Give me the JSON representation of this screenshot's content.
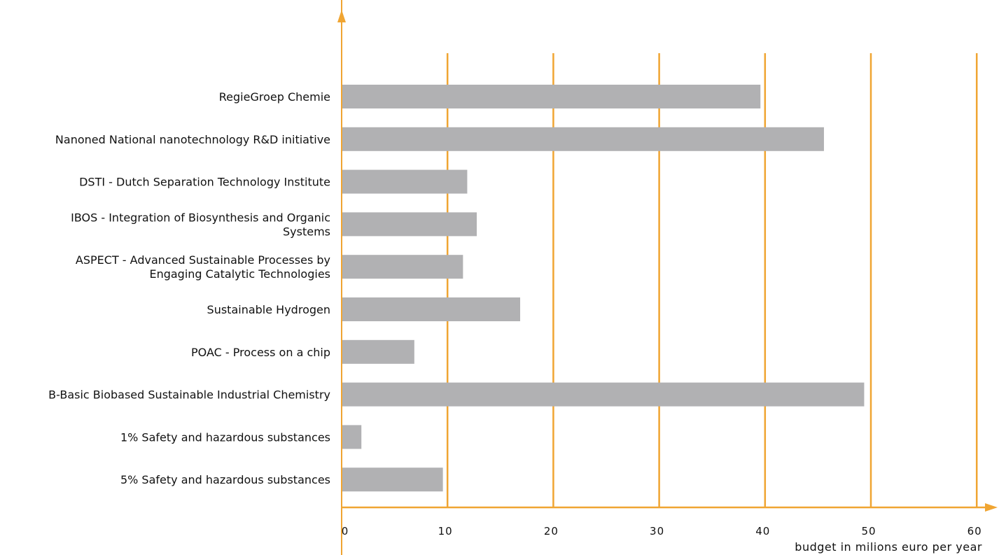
{
  "chart_data": {
    "type": "bar",
    "orientation": "horizontal",
    "title": "",
    "xlabel": "budget in milions euro per year",
    "ylabel": "",
    "xlim": [
      0,
      60
    ],
    "x_ticks": [
      0,
      10,
      20,
      30,
      40,
      50,
      60
    ],
    "x_tick_labels": [
      "0",
      "10",
      "20",
      "30",
      "40",
      "50",
      "60"
    ],
    "grid": "vertical",
    "categories": [
      [
        "RegieGroep Chemie"
      ],
      [
        "Nanoned National nanotechnology R&D initiative"
      ],
      [
        "DSTI - Dutch Separation Technology Institute"
      ],
      [
        "IBOS - Integration of Biosynthesis and Organic",
        "Systems"
      ],
      [
        "ASPECT - Advanced Sustainable Processes by",
        "Engaging Catalytic Technologies"
      ],
      [
        "Sustainable Hydrogen"
      ],
      [
        "POAC - Process on a chip"
      ],
      [
        "B-Basic Biobased Sustainable Industrial Chemistry"
      ],
      [
        "1% Safety and hazardous substances"
      ],
      [
        "5% Safety and hazardous substances"
      ]
    ],
    "values": [
      39.5,
      45.5,
      11.8,
      12.7,
      11.4,
      16.8,
      6.8,
      49.3,
      1.8,
      9.5
    ],
    "colors": {
      "bar": "#b1b1b3",
      "axis": "#f0a532",
      "grid": "#f0a532",
      "text": "#111111"
    }
  }
}
